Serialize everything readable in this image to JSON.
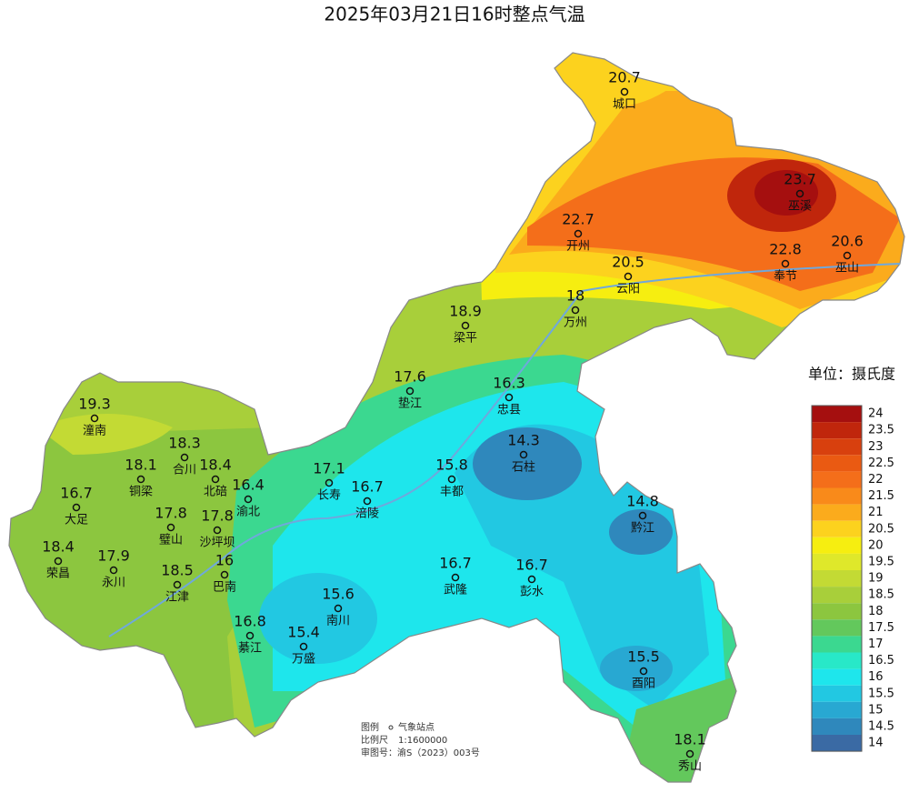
{
  "title": "2025年03月21日16时整点气温",
  "stations": [
    {
      "name": "城口",
      "value": 20.7
    },
    {
      "name": "巫溪",
      "value": 23.7
    },
    {
      "name": "开州",
      "value": 22.7
    },
    {
      "name": "奉节",
      "value": 22.8
    },
    {
      "name": "巫山",
      "value": 20.6
    },
    {
      "name": "云阳",
      "value": 20.5
    },
    {
      "name": "万州",
      "value": 18
    },
    {
      "name": "梁平",
      "value": 18.9
    },
    {
      "name": "垫江",
      "value": 17.6
    },
    {
      "name": "忠县",
      "value": 16.3
    },
    {
      "name": "潼南",
      "value": 19.3
    },
    {
      "name": "合川",
      "value": 18.3
    },
    {
      "name": "石柱",
      "value": 14.3
    },
    {
      "name": "铜梁",
      "value": 18.1
    },
    {
      "name": "北碚",
      "value": 18.4
    },
    {
      "name": "丰都",
      "value": 15.8
    },
    {
      "name": "长寿",
      "value": 17.1
    },
    {
      "name": "大足",
      "value": 16.7
    },
    {
      "name": "渝北",
      "value": 16.4
    },
    {
      "name": "涪陵",
      "value": 16.7
    },
    {
      "name": "璧山",
      "value": 17.8
    },
    {
      "name": "沙坪坝",
      "value": 17.8
    },
    {
      "name": "黔江",
      "value": 14.8
    },
    {
      "name": "荣昌",
      "value": 18.4
    },
    {
      "name": "永川",
      "value": 17.9
    },
    {
      "name": "巴南",
      "value": 16
    },
    {
      "name": "武隆",
      "value": 16.7
    },
    {
      "name": "彭水",
      "value": 16.7
    },
    {
      "name": "江津",
      "value": 18.5
    },
    {
      "name": "南川",
      "value": 15.6
    },
    {
      "name": "綦江",
      "value": 16.8
    },
    {
      "name": "万盛",
      "value": 15.4
    },
    {
      "name": "酉阳",
      "value": 15.5
    },
    {
      "name": "秀山",
      "value": 18.1
    }
  ],
  "legend": {
    "title": "单位：摄氏度",
    "levels": [
      {
        "value": 24,
        "color": "#a50f0f"
      },
      {
        "value": 23.5,
        "color": "#c0260c"
      },
      {
        "value": 23,
        "color": "#d8400e"
      },
      {
        "value": 22.5,
        "color": "#ea5a12"
      },
      {
        "value": 22,
        "color": "#f46e1a"
      },
      {
        "value": 21.5,
        "color": "#f98a1a"
      },
      {
        "value": 21,
        "color": "#fbab1c"
      },
      {
        "value": 20.5,
        "color": "#fcd21e"
      },
      {
        "value": 20,
        "color": "#f6ee10"
      },
      {
        "value": 19.5,
        "color": "#dfe82a"
      },
      {
        "value": 19,
        "color": "#c3da34"
      },
      {
        "value": 18.5,
        "color": "#a8cf3a"
      },
      {
        "value": 18,
        "color": "#8cc63f"
      },
      {
        "value": 17.5,
        "color": "#63c85c"
      },
      {
        "value": 17,
        "color": "#3bd890"
      },
      {
        "value": 16.5,
        "color": "#28e8c8"
      },
      {
        "value": 16,
        "color": "#1ee6ec"
      },
      {
        "value": 15.5,
        "color": "#22c8e2"
      },
      {
        "value": 15,
        "color": "#28a8d2"
      },
      {
        "value": 14.5,
        "color": "#2f88bc"
      },
      {
        "value": 14,
        "color": "#3a6aa4"
      }
    ]
  },
  "footer": {
    "legend_label": "图例",
    "legend_item": "气象站点",
    "scale_label": "比例尺",
    "scale": "1:1600000",
    "approval": "审图号：渝S（2023）003号"
  }
}
